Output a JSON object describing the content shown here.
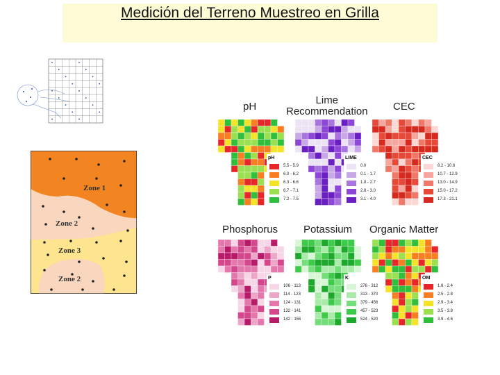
{
  "title": "Medición del Terreno Muestreo en Grilla",
  "zones": [
    "Zone 1",
    "Zone 2",
    "Zone 3",
    "Zone 2"
  ],
  "maps": [
    {
      "key": "ph",
      "title": "pH",
      "legend_title": "pH",
      "ranges": [
        "5.5 - 5.9",
        "6.0 - 6.2",
        "6.3 - 6.6",
        "6.7 - 7.1",
        "7.2 - 7.5"
      ],
      "colors": [
        "#e8262a",
        "#f77f22",
        "#f5e32a",
        "#9ae050",
        "#2fbf3a"
      ]
    },
    {
      "key": "lime",
      "title_lines": [
        "Lime",
        "Recommendation"
      ],
      "legend_title": "LIME",
      "ranges": [
        "0.0",
        "0.1 - 1.7",
        "1.8 - 2.7",
        "2.8 - 3.0",
        "3.1 - 4.0"
      ],
      "colors": [
        "#ece4f5",
        "#c9a8e8",
        "#a874e0",
        "#8e46d8",
        "#6a1fc2"
      ]
    },
    {
      "key": "cec",
      "title": "CEC",
      "legend_title": "CEC",
      "ranges": [
        "8.2 - 10.6",
        "10.7 - 12.9",
        "13.0 - 14.9",
        "15.0 - 17.2",
        "17.3 - 21.1"
      ],
      "colors": [
        "#fcd8d4",
        "#f6a69c",
        "#ef7868",
        "#e84a3a",
        "#d72a1e"
      ]
    },
    {
      "key": "phosphorus",
      "title": "Phosphorus",
      "legend_title": "P",
      "ranges": [
        "106 - 113",
        "114 - 123",
        "124 - 131",
        "132 - 141",
        "142 - 155"
      ],
      "colors": [
        "#f7d7e7",
        "#eea6c8",
        "#e477ab",
        "#d4478c",
        "#b81a6a"
      ]
    },
    {
      "key": "potassium",
      "title": "Potassium",
      "legend_title": "K",
      "ranges": [
        "276 - 312",
        "313 - 370",
        "379 - 456",
        "457 - 523",
        "524 - 520"
      ],
      "colors": [
        "#d8f5d6",
        "#aaebaa",
        "#74de7a",
        "#3ecb4a",
        "#1ea82c"
      ]
    },
    {
      "key": "om",
      "title": "Organic Matter",
      "legend_title": "OM",
      "ranges": [
        "1.8 - 2.4",
        "2.5 - 2.8",
        "2.9 - 3.4",
        "3.5 - 3.8",
        "3.9 - 4.6"
      ],
      "colors": [
        "#e8262a",
        "#f77f22",
        "#f5e32a",
        "#9ae050",
        "#2fbf3a"
      ]
    }
  ]
}
